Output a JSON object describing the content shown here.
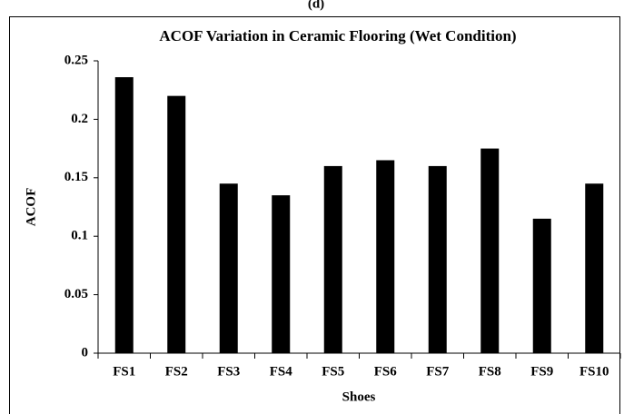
{
  "chart_data": {
    "type": "bar",
    "panel_label": "(d)",
    "title": "ACOF Variation in Ceramic Flooring (Wet Condition)",
    "x_label": "Shoes",
    "y_label": "ACOF",
    "categories": [
      "FS1",
      "FS2",
      "FS3",
      "FS4",
      "FS5",
      "FS6",
      "FS7",
      "FS8",
      "FS9",
      "FS10"
    ],
    "values": [
      0.236,
      0.22,
      0.145,
      0.135,
      0.16,
      0.165,
      0.16,
      0.175,
      0.115,
      0.145
    ],
    "color": "#000000",
    "ylim": [
      0,
      0.25
    ],
    "yticks": [
      0,
      0.05,
      0.1,
      0.15,
      0.2,
      0.25
    ],
    "grid": false
  }
}
